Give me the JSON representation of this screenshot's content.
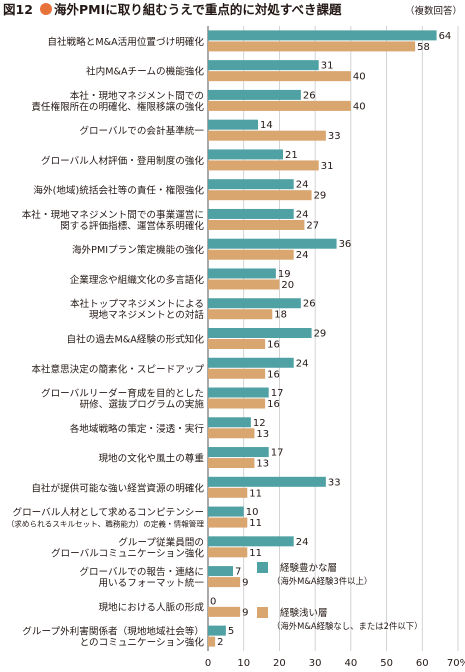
{
  "figure_label": "図12",
  "title": "海外PMIに取り組むうえで重点的に対処すべき課題",
  "note": "（複数回答）",
  "legend": [
    {
      "label_line1": "経験豊かな層",
      "label_line2": "（海外M&A経験3件以上）"
    },
    {
      "label_line1": "経験浅い層",
      "label_line2": "（海外M&A経験なし、または2件以下）"
    }
  ],
  "colors": {
    "series_experienced": "#4fa1a4",
    "series_inexperienced": "#d9a66f",
    "title_dot": "#e8733a",
    "grid": "#c8c8c8",
    "axis": "#555555"
  },
  "chart_data": {
    "type": "bar",
    "orientation": "horizontal",
    "xlim": [
      0,
      70
    ],
    "x_ticks": [
      "0",
      "10",
      "20",
      "30",
      "40",
      "50",
      "60",
      "70%"
    ],
    "grid": true,
    "legend_position": "bottom-right",
    "series": [
      {
        "name": "経験豊かな層（海外M&A経験3件以上）",
        "values": [
          64,
          31,
          26,
          14,
          21,
          24,
          24,
          36,
          19,
          26,
          29,
          24,
          17,
          12,
          17,
          33,
          10,
          24,
          7,
          0,
          5
        ]
      },
      {
        "name": "経験浅い層（海外M&A経験なし、または2件以下）",
        "values": [
          58,
          40,
          40,
          33,
          31,
          29,
          27,
          24,
          20,
          18,
          16,
          16,
          16,
          13,
          13,
          11,
          11,
          11,
          9,
          9,
          2
        ]
      }
    ],
    "categories": [
      {
        "lines": [
          "自社戦略とM&A活用位置づけ明確化"
        ]
      },
      {
        "lines": [
          "社内M&Aチームの機能強化"
        ]
      },
      {
        "lines": [
          "本社・現地マネジメント間での",
          "責任権限所在の明確化、権限移譲の強化"
        ]
      },
      {
        "lines": [
          "グローバルでの会計基準統一"
        ]
      },
      {
        "lines": [
          "グローバル人材評価・登用制度の強化"
        ]
      },
      {
        "lines": [
          "海外(地域)統括会社等の責任・権限強化"
        ]
      },
      {
        "lines": [
          "本社・現地マネジメント間での事業運営に",
          "関する評価指標、運営体系明確化"
        ]
      },
      {
        "lines": [
          "海外PMIプラン策定機能の強化"
        ]
      },
      {
        "lines": [
          "企業理念や組織文化の多言語化"
        ]
      },
      {
        "lines": [
          "本社トップマネジメントによる",
          "現地マネジメントとの対話"
        ]
      },
      {
        "lines": [
          "自社の過去M&A経験の形式知化"
        ]
      },
      {
        "lines": [
          "本社意思決定の簡素化・スピードアップ"
        ]
      },
      {
        "lines": [
          "グローバルリーダー育成を目的とした",
          "研修、選抜プログラムの実施"
        ]
      },
      {
        "lines": [
          "各地域戦略の策定・浸透・実行"
        ]
      },
      {
        "lines": [
          "現地の文化や風土の尊重"
        ]
      },
      {
        "lines": [
          "自社が提供可能な強い経営資源の明確化"
        ]
      },
      {
        "lines": [
          "グローバル人材として求めるコンピテンシー",
          "（求められるスキルセット、職務能力）の定義・情報管理"
        ]
      },
      {
        "lines": [
          "グループ従業員間の",
          "グローバルコミュニケーション強化"
        ]
      },
      {
        "lines": [
          "グローバルでの報告・連絡に",
          "用いるフォーマット統一"
        ]
      },
      {
        "lines": [
          "現地における人脈の形成"
        ]
      },
      {
        "lines": [
          "グループ外利害関係者（現地地域社会等）",
          "とのコミュニケーション強化"
        ]
      }
    ]
  }
}
